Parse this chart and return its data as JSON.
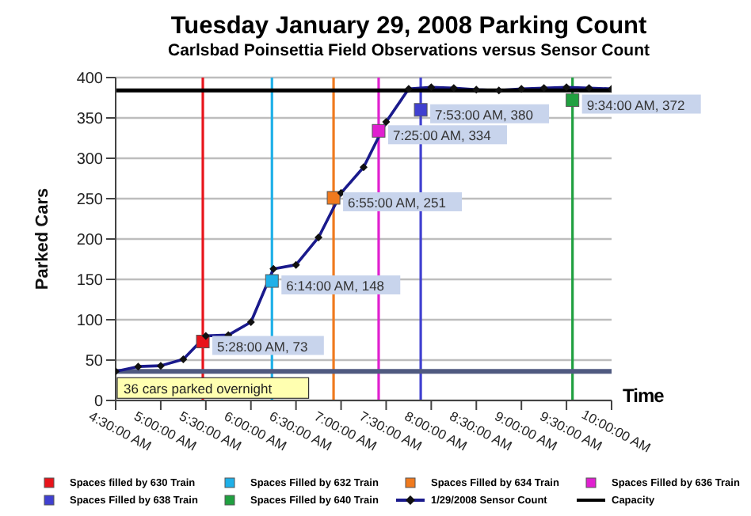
{
  "chart_data": {
    "type": "line",
    "title": "Tuesday January 29, 2008 Parking Count",
    "subtitle": "Carlsbad Poinsettia Field Observations versus Sensor Count",
    "xlabel": "Time",
    "ylabel": "Parked Cars",
    "xlim": [
      4.5,
      10
    ],
    "xticks": [
      {
        "value": 4.5,
        "label": "4:30:00 AM"
      },
      {
        "value": 5,
        "label": "5:00:00 AM"
      },
      {
        "value": 5.5,
        "label": "5:30:00 AM"
      },
      {
        "value": 6,
        "label": "6:00:00 AM"
      },
      {
        "value": 6.5,
        "label": "6:30:00 AM"
      },
      {
        "value": 7,
        "label": "7:00:00 AM"
      },
      {
        "value": 7.5,
        "label": "7:30:00 AM"
      },
      {
        "value": 8,
        "label": "8:00:00 AM"
      },
      {
        "value": 8.5,
        "label": "8:30:00 AM"
      },
      {
        "value": 9,
        "label": "9:00:00 AM"
      },
      {
        "value": 9.5,
        "label": "9:30:00 AM"
      },
      {
        "value": 10,
        "label": "10:00:00 AM"
      }
    ],
    "ylim": [
      0,
      400
    ],
    "yticks": [
      0,
      50,
      100,
      150,
      200,
      250,
      300,
      350,
      400
    ],
    "grid": "y",
    "legend": "bottom",
    "series": [
      {
        "name": "Spaces filled by 630 Train",
        "type": "scatter",
        "marker": "square",
        "color": "#e8141b",
        "x": [
          5.4667
        ],
        "values": [
          73
        ],
        "value_labels": [
          "5:28:00 AM, 73"
        ]
      },
      {
        "name": "Spaces Filled by 632 Train",
        "type": "scatter",
        "marker": "square",
        "color": "#1fb0e8",
        "x": [
          6.2333
        ],
        "values": [
          148
        ],
        "value_labels": [
          "6:14:00 AM, 148"
        ]
      },
      {
        "name": "Spaces Filled by 634 Train",
        "type": "scatter",
        "marker": "square",
        "color": "#f07a1e",
        "x": [
          6.9167
        ],
        "values": [
          251
        ],
        "value_labels": [
          "6:55:00 AM, 251"
        ]
      },
      {
        "name": "Spaces Filled by 636 Train",
        "type": "scatter",
        "marker": "square",
        "color": "#e020d0",
        "x": [
          7.4167
        ],
        "values": [
          334
        ],
        "value_labels": [
          "7:25:00 AM, 334"
        ]
      },
      {
        "name": "Spaces Filled by 638 Train",
        "type": "scatter",
        "marker": "square",
        "color": "#4040d0",
        "x": [
          7.8833
        ],
        "values": [
          360
        ],
        "value_labels": [
          "7:53:00 AM, 380"
        ]
      },
      {
        "name": "Spaces Filled by 640 Train",
        "type": "scatter",
        "marker": "square",
        "color": "#20a040",
        "x": [
          9.5667
        ],
        "values": [
          372
        ],
        "value_labels": [
          "9:34:00 AM, 372"
        ]
      },
      {
        "name": "1/29/2008 Sensor Count",
        "type": "line",
        "marker": "diamond",
        "color": "#1a1a8c",
        "x": [
          4.5,
          4.75,
          5,
          5.25,
          5.5,
          5.75,
          6,
          6.25,
          6.5,
          6.75,
          7,
          7.25,
          7.5,
          7.75,
          8,
          8.25,
          8.5,
          8.75,
          9,
          9.25,
          9.5,
          9.75,
          10
        ],
        "values": [
          36,
          42,
          43,
          51,
          80,
          81,
          97,
          163,
          168,
          202,
          257,
          289,
          345,
          386,
          388,
          387,
          385,
          384,
          386,
          387,
          388,
          387,
          386
        ]
      },
      {
        "name": "Capacity",
        "type": "line",
        "marker": "none",
        "color": "#000000",
        "x": [
          4.5,
          10
        ],
        "values": [
          384,
          384
        ]
      }
    ],
    "ref_lines": [
      {
        "axis": "x",
        "value": 5.4667,
        "color": "#e8141b"
      },
      {
        "axis": "x",
        "value": 6.2333,
        "color": "#1fb0e8"
      },
      {
        "axis": "x",
        "value": 6.9167,
        "color": "#f07a1e"
      },
      {
        "axis": "x",
        "value": 7.4167,
        "color": "#e020d0"
      },
      {
        "axis": "x",
        "value": 7.8833,
        "color": "#4040d0"
      },
      {
        "axis": "x",
        "value": 9.5667,
        "color": "#20a040"
      },
      {
        "axis": "y",
        "value": 36,
        "color": "#505a80",
        "label": "36 cars parked overnight"
      }
    ]
  }
}
